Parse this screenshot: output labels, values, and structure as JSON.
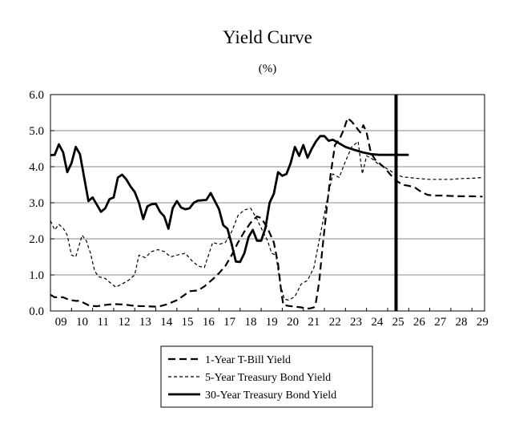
{
  "chart_data": {
    "type": "line",
    "title": "Yield Curve",
    "subtitle": "(%)",
    "xlabel": "",
    "ylabel": "",
    "x_tick_labels": [
      "09",
      "10",
      "11",
      "12",
      "13",
      "14",
      "15",
      "16",
      "17",
      "18",
      "19",
      "20",
      "21",
      "22",
      "23",
      "24",
      "25",
      "26",
      "27",
      "28",
      "29"
    ],
    "y_tick_labels": [
      "0.0",
      "1.0",
      "2.0",
      "3.0",
      "4.0",
      "5.0",
      "6.0"
    ],
    "xlim": [
      2009,
      2029.6
    ],
    "ylim": [
      0,
      6
    ],
    "grid": "horizontal",
    "legend_position": "bottom-center",
    "vertical_marker_x": 2025.4,
    "series": [
      {
        "name": "1-Year T-Bill Yield",
        "style": "dashed",
        "points": [
          [
            2009.0,
            0.45
          ],
          [
            2009.2,
            0.38
          ],
          [
            2009.4,
            0.38
          ],
          [
            2009.6,
            0.38
          ],
          [
            2009.8,
            0.33
          ],
          [
            2010.0,
            0.3
          ],
          [
            2010.2,
            0.28
          ],
          [
            2010.4,
            0.28
          ],
          [
            2010.6,
            0.22
          ],
          [
            2010.8,
            0.16
          ],
          [
            2011.0,
            0.14
          ],
          [
            2011.2,
            0.13
          ],
          [
            2011.5,
            0.16
          ],
          [
            2011.8,
            0.18
          ],
          [
            2012.0,
            0.19
          ],
          [
            2012.5,
            0.18
          ],
          [
            2013.0,
            0.14
          ],
          [
            2013.5,
            0.13
          ],
          [
            2014.0,
            0.12
          ],
          [
            2014.2,
            0.13
          ],
          [
            2014.5,
            0.18
          ],
          [
            2014.8,
            0.25
          ],
          [
            2015.0,
            0.3
          ],
          [
            2015.3,
            0.42
          ],
          [
            2015.6,
            0.55
          ],
          [
            2016.0,
            0.57
          ],
          [
            2016.3,
            0.68
          ],
          [
            2016.7,
            0.88
          ],
          [
            2017.0,
            1.05
          ],
          [
            2017.3,
            1.25
          ],
          [
            2017.6,
            1.55
          ],
          [
            2017.9,
            1.9
          ],
          [
            2018.2,
            2.2
          ],
          [
            2018.5,
            2.45
          ],
          [
            2018.8,
            2.62
          ],
          [
            2019.0,
            2.58
          ],
          [
            2019.3,
            2.3
          ],
          [
            2019.6,
            1.9
          ],
          [
            2019.8,
            1.3
          ],
          [
            2019.95,
            0.55
          ],
          [
            2020.05,
            0.17
          ],
          [
            2020.3,
            0.14
          ],
          [
            2020.6,
            0.12
          ],
          [
            2020.9,
            0.1
          ],
          [
            2021.1,
            0.07
          ],
          [
            2021.3,
            0.07
          ],
          [
            2021.5,
            0.1
          ],
          [
            2021.6,
            0.25
          ],
          [
            2021.75,
            0.8
          ],
          [
            2021.9,
            1.7
          ],
          [
            2022.1,
            2.8
          ],
          [
            2022.3,
            3.8
          ],
          [
            2022.5,
            4.6
          ],
          [
            2022.7,
            4.75
          ],
          [
            2022.9,
            5.0
          ],
          [
            2023.1,
            5.35
          ],
          [
            2023.3,
            5.25
          ],
          [
            2023.5,
            5.1
          ],
          [
            2023.7,
            4.95
          ],
          [
            2023.85,
            5.15
          ],
          [
            2024.0,
            4.95
          ],
          [
            2024.2,
            4.4
          ],
          [
            2024.4,
            4.2
          ],
          [
            2024.6,
            4.1
          ],
          [
            2024.9,
            3.95
          ],
          [
            2025.1,
            3.8
          ],
          [
            2025.4,
            3.62
          ],
          [
            2025.7,
            3.5
          ],
          [
            2026.0,
            3.47
          ],
          [
            2026.3,
            3.42
          ],
          [
            2026.6,
            3.3
          ],
          [
            2026.9,
            3.22
          ],
          [
            2027.2,
            3.2
          ],
          [
            2027.6,
            3.2
          ],
          [
            2028.0,
            3.19
          ],
          [
            2028.5,
            3.18
          ],
          [
            2029.0,
            3.18
          ],
          [
            2029.5,
            3.17
          ]
        ]
      },
      {
        "name": "5-Year Treasury Bond Yield",
        "style": "dotted",
        "points": [
          [
            2009.0,
            2.5
          ],
          [
            2009.2,
            2.25
          ],
          [
            2009.4,
            2.4
          ],
          [
            2009.6,
            2.3
          ],
          [
            2009.8,
            2.1
          ],
          [
            2010.0,
            1.55
          ],
          [
            2010.2,
            1.5
          ],
          [
            2010.5,
            2.1
          ],
          [
            2010.7,
            1.95
          ],
          [
            2010.9,
            1.6
          ],
          [
            2011.1,
            1.1
          ],
          [
            2011.3,
            0.95
          ],
          [
            2011.6,
            0.9
          ],
          [
            2011.8,
            0.8
          ],
          [
            2012.1,
            0.66
          ],
          [
            2012.4,
            0.75
          ],
          [
            2012.7,
            0.85
          ],
          [
            2013.0,
            1.0
          ],
          [
            2013.2,
            1.55
          ],
          [
            2013.5,
            1.48
          ],
          [
            2013.8,
            1.65
          ],
          [
            2014.1,
            1.7
          ],
          [
            2014.4,
            1.65
          ],
          [
            2014.7,
            1.5
          ],
          [
            2015.0,
            1.55
          ],
          [
            2015.4,
            1.6
          ],
          [
            2015.7,
            1.4
          ],
          [
            2016.0,
            1.25
          ],
          [
            2016.3,
            1.2
          ],
          [
            2016.7,
            1.9
          ],
          [
            2017.0,
            1.85
          ],
          [
            2017.3,
            1.9
          ],
          [
            2017.6,
            2.2
          ],
          [
            2017.9,
            2.65
          ],
          [
            2018.2,
            2.8
          ],
          [
            2018.5,
            2.85
          ],
          [
            2018.8,
            2.55
          ],
          [
            2019.0,
            2.3
          ],
          [
            2019.3,
            1.95
          ],
          [
            2019.5,
            1.6
          ],
          [
            2019.7,
            1.55
          ],
          [
            2019.9,
            0.75
          ],
          [
            2020.1,
            0.33
          ],
          [
            2020.3,
            0.3
          ],
          [
            2020.6,
            0.4
          ],
          [
            2020.9,
            0.75
          ],
          [
            2021.2,
            0.85
          ],
          [
            2021.5,
            1.2
          ],
          [
            2021.8,
            2.1
          ],
          [
            2022.1,
            3.0
          ],
          [
            2022.4,
            3.8
          ],
          [
            2022.7,
            3.7
          ],
          [
            2023.0,
            4.15
          ],
          [
            2023.3,
            4.55
          ],
          [
            2023.6,
            4.7
          ],
          [
            2023.8,
            3.8
          ],
          [
            2024.0,
            4.3
          ],
          [
            2024.2,
            4.25
          ],
          [
            2024.5,
            4.1
          ],
          [
            2024.8,
            4.0
          ],
          [
            2025.1,
            3.9
          ],
          [
            2025.4,
            3.78
          ],
          [
            2025.7,
            3.72
          ],
          [
            2026.0,
            3.7
          ],
          [
            2026.5,
            3.67
          ],
          [
            2027.0,
            3.65
          ],
          [
            2027.5,
            3.65
          ],
          [
            2028.0,
            3.65
          ],
          [
            2028.5,
            3.67
          ],
          [
            2029.0,
            3.68
          ],
          [
            2029.5,
            3.7
          ]
        ]
      },
      {
        "name": "30-Year Treasury Bond Yield",
        "style": "solid",
        "points": [
          [
            2009.0,
            4.32
          ],
          [
            2009.2,
            4.33
          ],
          [
            2009.4,
            4.62
          ],
          [
            2009.6,
            4.4
          ],
          [
            2009.8,
            3.85
          ],
          [
            2010.0,
            4.1
          ],
          [
            2010.2,
            4.55
          ],
          [
            2010.4,
            4.35
          ],
          [
            2010.6,
            3.7
          ],
          [
            2010.8,
            3.05
          ],
          [
            2011.0,
            3.15
          ],
          [
            2011.2,
            2.95
          ],
          [
            2011.4,
            2.75
          ],
          [
            2011.6,
            2.85
          ],
          [
            2011.8,
            3.1
          ],
          [
            2012.0,
            3.15
          ],
          [
            2012.2,
            3.7
          ],
          [
            2012.4,
            3.78
          ],
          [
            2012.6,
            3.65
          ],
          [
            2012.8,
            3.45
          ],
          [
            2013.0,
            3.3
          ],
          [
            2013.2,
            3.0
          ],
          [
            2013.4,
            2.55
          ],
          [
            2013.6,
            2.9
          ],
          [
            2013.8,
            2.96
          ],
          [
            2014.0,
            2.97
          ],
          [
            2014.2,
            2.75
          ],
          [
            2014.4,
            2.62
          ],
          [
            2014.6,
            2.28
          ],
          [
            2014.8,
            2.85
          ],
          [
            2015.0,
            3.05
          ],
          [
            2015.2,
            2.87
          ],
          [
            2015.4,
            2.82
          ],
          [
            2015.6,
            2.85
          ],
          [
            2015.8,
            3.0
          ],
          [
            2016.0,
            3.06
          ],
          [
            2016.2,
            3.07
          ],
          [
            2016.4,
            3.08
          ],
          [
            2016.6,
            3.27
          ],
          [
            2016.8,
            3.05
          ],
          [
            2017.0,
            2.82
          ],
          [
            2017.2,
            2.38
          ],
          [
            2017.4,
            2.28
          ],
          [
            2017.6,
            1.85
          ],
          [
            2017.8,
            1.37
          ],
          [
            2018.0,
            1.36
          ],
          [
            2018.2,
            1.6
          ],
          [
            2018.4,
            2.05
          ],
          [
            2018.6,
            2.25
          ],
          [
            2018.8,
            1.95
          ],
          [
            2019.0,
            1.95
          ],
          [
            2019.2,
            2.3
          ],
          [
            2019.4,
            3.0
          ],
          [
            2019.6,
            3.25
          ],
          [
            2019.8,
            3.85
          ],
          [
            2020.0,
            3.75
          ],
          [
            2020.2,
            3.8
          ],
          [
            2020.4,
            4.1
          ],
          [
            2020.6,
            4.55
          ],
          [
            2020.8,
            4.3
          ],
          [
            2021.0,
            4.6
          ],
          [
            2021.2,
            4.25
          ],
          [
            2021.4,
            4.5
          ],
          [
            2021.6,
            4.7
          ],
          [
            2021.8,
            4.85
          ],
          [
            2022.0,
            4.85
          ],
          [
            2022.2,
            4.72
          ],
          [
            2022.4,
            4.75
          ],
          [
            2022.7,
            4.65
          ],
          [
            2023.0,
            4.55
          ],
          [
            2023.4,
            4.47
          ],
          [
            2023.8,
            4.4
          ],
          [
            2024.2,
            4.35
          ],
          [
            2024.6,
            4.33
          ],
          [
            2025.0,
            4.33
          ],
          [
            2025.5,
            4.33
          ],
          [
            2026.0,
            4.33
          ]
        ]
      }
    ]
  },
  "legend": {
    "items": [
      "1-Year T-Bill Yield",
      "5-Year Treasury Bond Yield",
      "30-Year Treasury Bond Yield"
    ]
  }
}
